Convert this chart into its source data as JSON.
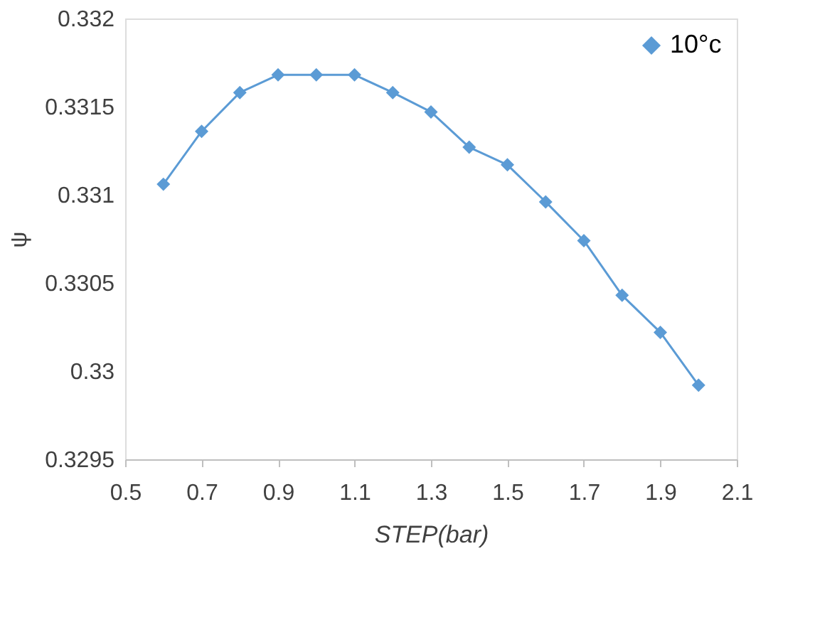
{
  "chart_data": {
    "type": "line",
    "xlabel": "STEP(bar)",
    "ylabel": "ψ",
    "x": [
      0.6,
      0.7,
      0.8,
      0.9,
      1.0,
      1.1,
      1.2,
      1.3,
      1.4,
      1.5,
      1.6,
      1.7,
      1.8,
      1.9,
      2.0
    ],
    "series": [
      {
        "name": "10°c",
        "color": "#5b9bd5",
        "values": [
          0.33106,
          0.33136,
          0.33158,
          0.33168,
          0.33168,
          0.33168,
          0.33158,
          0.33147,
          0.33127,
          0.33117,
          0.33096,
          0.33074,
          0.33043,
          0.33022,
          0.32992
        ]
      }
    ],
    "xlim": [
      0.5,
      2.1
    ],
    "xticks": [
      0.5,
      0.7,
      0.9,
      1.1,
      1.3,
      1.5,
      1.7,
      1.9,
      2.1
    ],
    "ylim": [
      0.3295,
      0.332
    ],
    "yticks": [
      0.3295,
      0.33,
      0.3305,
      0.331,
      0.3315,
      0.332
    ],
    "marker": "diamond",
    "line_style": "solid",
    "grid": false,
    "legend": "top right"
  }
}
